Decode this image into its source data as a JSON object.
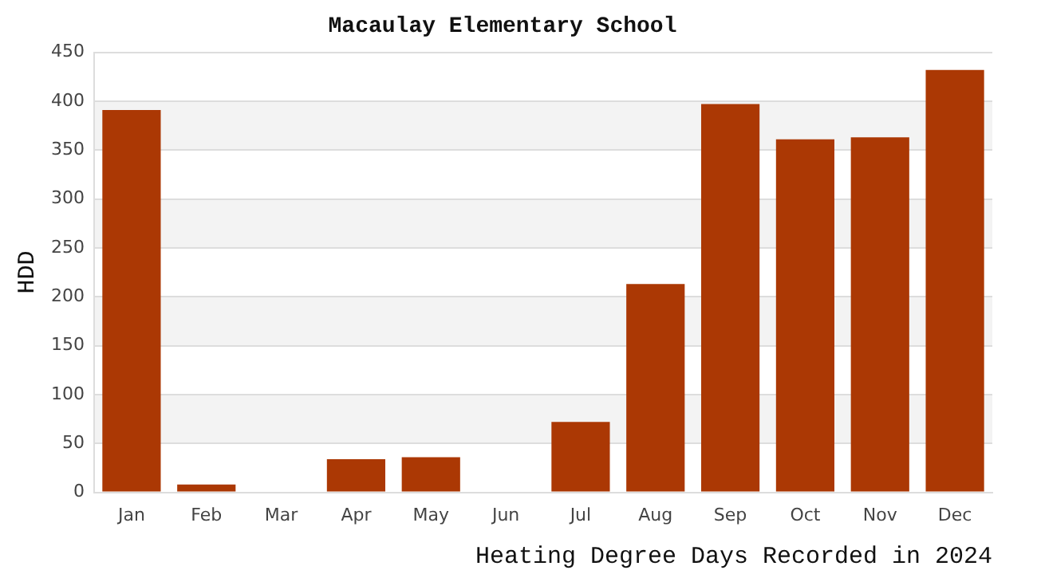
{
  "chart_data": {
    "type": "bar",
    "title": "Macaulay Elementary School",
    "xlabel": "Heating Degree Days Recorded in 2024",
    "ylabel": "HDD",
    "categories": [
      "Jan",
      "Feb",
      "Mar",
      "Apr",
      "May",
      "Jun",
      "Jul",
      "Aug",
      "Sep",
      "Oct",
      "Nov",
      "Dec"
    ],
    "values": [
      391,
      8,
      0,
      34,
      36,
      0,
      72,
      213,
      397,
      361,
      363,
      432
    ],
    "color": "#ab3804",
    "ylim": [
      0,
      450
    ],
    "yticks": [
      0,
      50,
      100,
      150,
      200,
      250,
      300,
      350,
      400,
      450
    ],
    "grid": "y",
    "legend": false
  }
}
